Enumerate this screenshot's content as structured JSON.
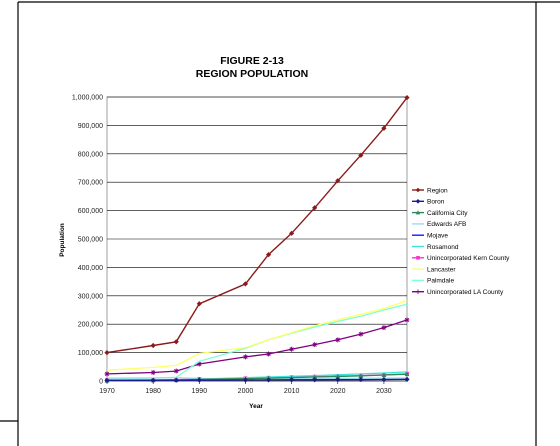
{
  "chart_data": {
    "type": "line",
    "title": "FIGURE 2-13",
    "subtitle": "REGION POPULATION",
    "xlabel": "Year",
    "ylabel": "Population",
    "x_ticks": [
      "1970",
      "1980",
      "1990",
      "2000",
      "2010",
      "2020",
      "2030"
    ],
    "y_ticks": [
      "0",
      "100,000",
      "200,000",
      "300,000",
      "400,000",
      "500,000",
      "600,000",
      "700,000",
      "800,000",
      "900,000",
      "1,000,000"
    ],
    "xlim": [
      1970,
      2035
    ],
    "ylim": [
      0,
      1000000
    ],
    "grid": "horizontal",
    "legend_position": "right",
    "x": [
      1970,
      1980,
      1985,
      1990,
      2000,
      2005,
      2010,
      2015,
      2020,
      2025,
      2030,
      2035
    ],
    "series": [
      {
        "name": "Region",
        "color": "#8b1a1a",
        "marker": "diamond",
        "values": [
          100000,
          125000,
          138000,
          272000,
          342000,
          445000,
          520000,
          610000,
          705000,
          795000,
          890000,
          998000
        ]
      },
      {
        "name": "Boron",
        "color": "#1a1a8b",
        "marker": "diamond",
        "values": [
          2000,
          2500,
          2800,
          3200,
          3500,
          3800,
          4100,
          4400,
          4700,
          5000,
          5300,
          5600
        ]
      },
      {
        "name": "California City",
        "color": "#2e8b57",
        "marker": "triangle",
        "values": [
          1500,
          2500,
          3000,
          6000,
          8000,
          10000,
          12000,
          14000,
          16000,
          18000,
          21000,
          24000
        ]
      },
      {
        "name": "Edwards AFB",
        "color": "#9fd8ef",
        "marker": "none",
        "values": [
          10000,
          11000,
          11500,
          9000,
          7000,
          7500,
          8000,
          8500,
          9000,
          9500,
          10000,
          10500
        ]
      },
      {
        "name": "Mojave",
        "color": "#1a1aff",
        "marker": "none",
        "values": [
          2500,
          2800,
          3000,
          3500,
          3800,
          4000,
          4200,
          4500,
          4800,
          5100,
          5400,
          5700
        ]
      },
      {
        "name": "Rosamond",
        "color": "#40e0e0",
        "marker": "none",
        "values": [
          2000,
          2800,
          3500,
          7000,
          12000,
          14000,
          16500,
          19000,
          22000,
          25000,
          28000,
          32000
        ]
      },
      {
        "name": "Unincorporated Kern County",
        "color": "#ff33cc",
        "marker": "square",
        "values": [
          3000,
          4000,
          5000,
          7000,
          9000,
          11000,
          13000,
          15000,
          17000,
          19000,
          22000,
          25000
        ]
      },
      {
        "name": "Lancaster",
        "color": "#ffff66",
        "marker": "none",
        "values": [
          38000,
          48000,
          55000,
          97000,
          118000,
          145000,
          170000,
          195000,
          215000,
          235000,
          255000,
          283000
        ]
      },
      {
        "name": "Palmdale",
        "color": "#7fffd4",
        "marker": "none",
        "values": [
          8000,
          10000,
          13000,
          69000,
          115000,
          145000,
          168000,
          190000,
          210000,
          228000,
          250000,
          270000
        ]
      },
      {
        "name": "Unincorporated LA County",
        "color": "#800080",
        "marker": "star",
        "values": [
          25000,
          30000,
          35000,
          60000,
          85000,
          95000,
          112000,
          128000,
          145000,
          165000,
          188000,
          215000
        ]
      }
    ]
  }
}
